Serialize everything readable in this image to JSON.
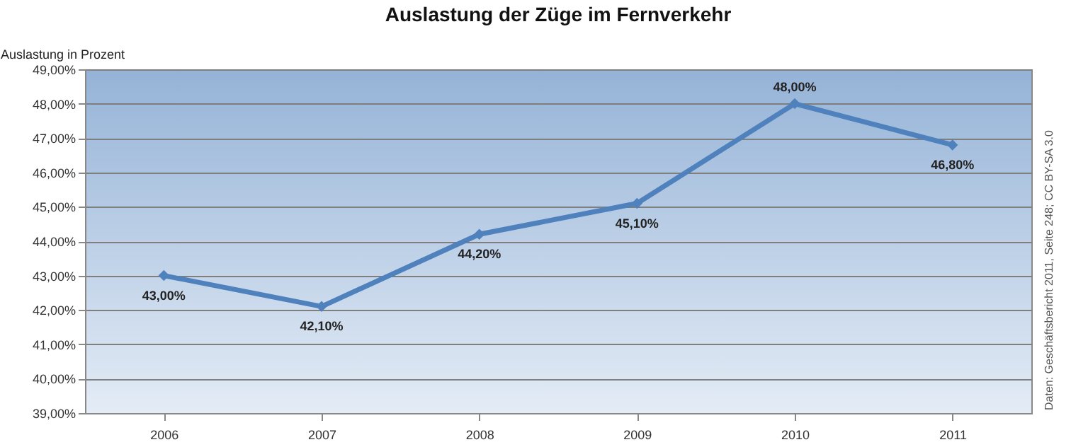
{
  "chart_data": {
    "type": "line",
    "title": "Auslastung der Züge im Fernverkehr",
    "ylabel": "Auslastung in Prozent",
    "categories": [
      "2006",
      "2007",
      "2008",
      "2009",
      "2010",
      "2011"
    ],
    "series": [
      {
        "color": "#4f81bd",
        "values": [
          43.0,
          42.1,
          44.2,
          45.1,
          48.0,
          46.8
        ],
        "value_labels": [
          "43,00%",
          "42,10%",
          "44,20%",
          "45,10%",
          "48,00%",
          "46,80%"
        ]
      }
    ],
    "ylim": [
      39,
      49
    ],
    "yticks": [
      {
        "value": 39,
        "label": "39,00%"
      },
      {
        "value": 40,
        "label": "40,00%"
      },
      {
        "value": 41,
        "label": "41,00%"
      },
      {
        "value": 42,
        "label": "42,00%"
      },
      {
        "value": 43,
        "label": "43,00%"
      },
      {
        "value": 44,
        "label": "44,00%"
      },
      {
        "value": 45,
        "label": "45,00%"
      },
      {
        "value": 46,
        "label": "46,00%"
      },
      {
        "value": 47,
        "label": "47,00%"
      },
      {
        "value": 48,
        "label": "48,00%"
      },
      {
        "value": 49,
        "label": "49,00%"
      }
    ],
    "grid": "y",
    "marker": "diamond",
    "annotations": [
      "Daten: Geschäftsbericht 2011, Seite 248; CC BY-SA 3.0"
    ]
  }
}
